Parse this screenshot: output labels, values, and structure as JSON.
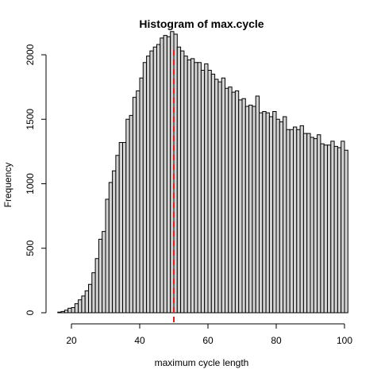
{
  "chart_data": {
    "type": "bar",
    "title": "Histogram of max.cycle",
    "xlabel": "maximum cycle length",
    "ylabel": "Frequency",
    "xlim": [
      15,
      100
    ],
    "ylim": [
      0,
      2000
    ],
    "xticks": [
      20,
      40,
      60,
      80,
      100
    ],
    "yticks": [
      0,
      500,
      1000,
      1500,
      2000
    ],
    "bin_width": 1,
    "bins_start": 16,
    "values": [
      5,
      10,
      20,
      35,
      40,
      70,
      100,
      130,
      170,
      220,
      310,
      420,
      570,
      630,
      880,
      1010,
      1100,
      1220,
      1320,
      1320,
      1500,
      1530,
      1670,
      1720,
      1820,
      1940,
      1990,
      2030,
      2060,
      2080,
      2130,
      2150,
      2140,
      2180,
      2160,
      2060,
      2030,
      1990,
      1960,
      1970,
      1940,
      1940,
      1880,
      1930,
      1880,
      1850,
      1810,
      1790,
      1820,
      1740,
      1750,
      1710,
      1720,
      1650,
      1660,
      1600,
      1610,
      1600,
      1680,
      1550,
      1560,
      1550,
      1520,
      1560,
      1500,
      1480,
      1520,
      1420,
      1420,
      1440,
      1420,
      1450,
      1390,
      1390,
      1360,
      1350,
      1380,
      1310,
      1300,
      1300,
      1330,
      1290,
      1280,
      1330,
      1260
    ],
    "reference_line": {
      "x": 50,
      "color": "#e31a1c",
      "style": "dashed"
    }
  }
}
